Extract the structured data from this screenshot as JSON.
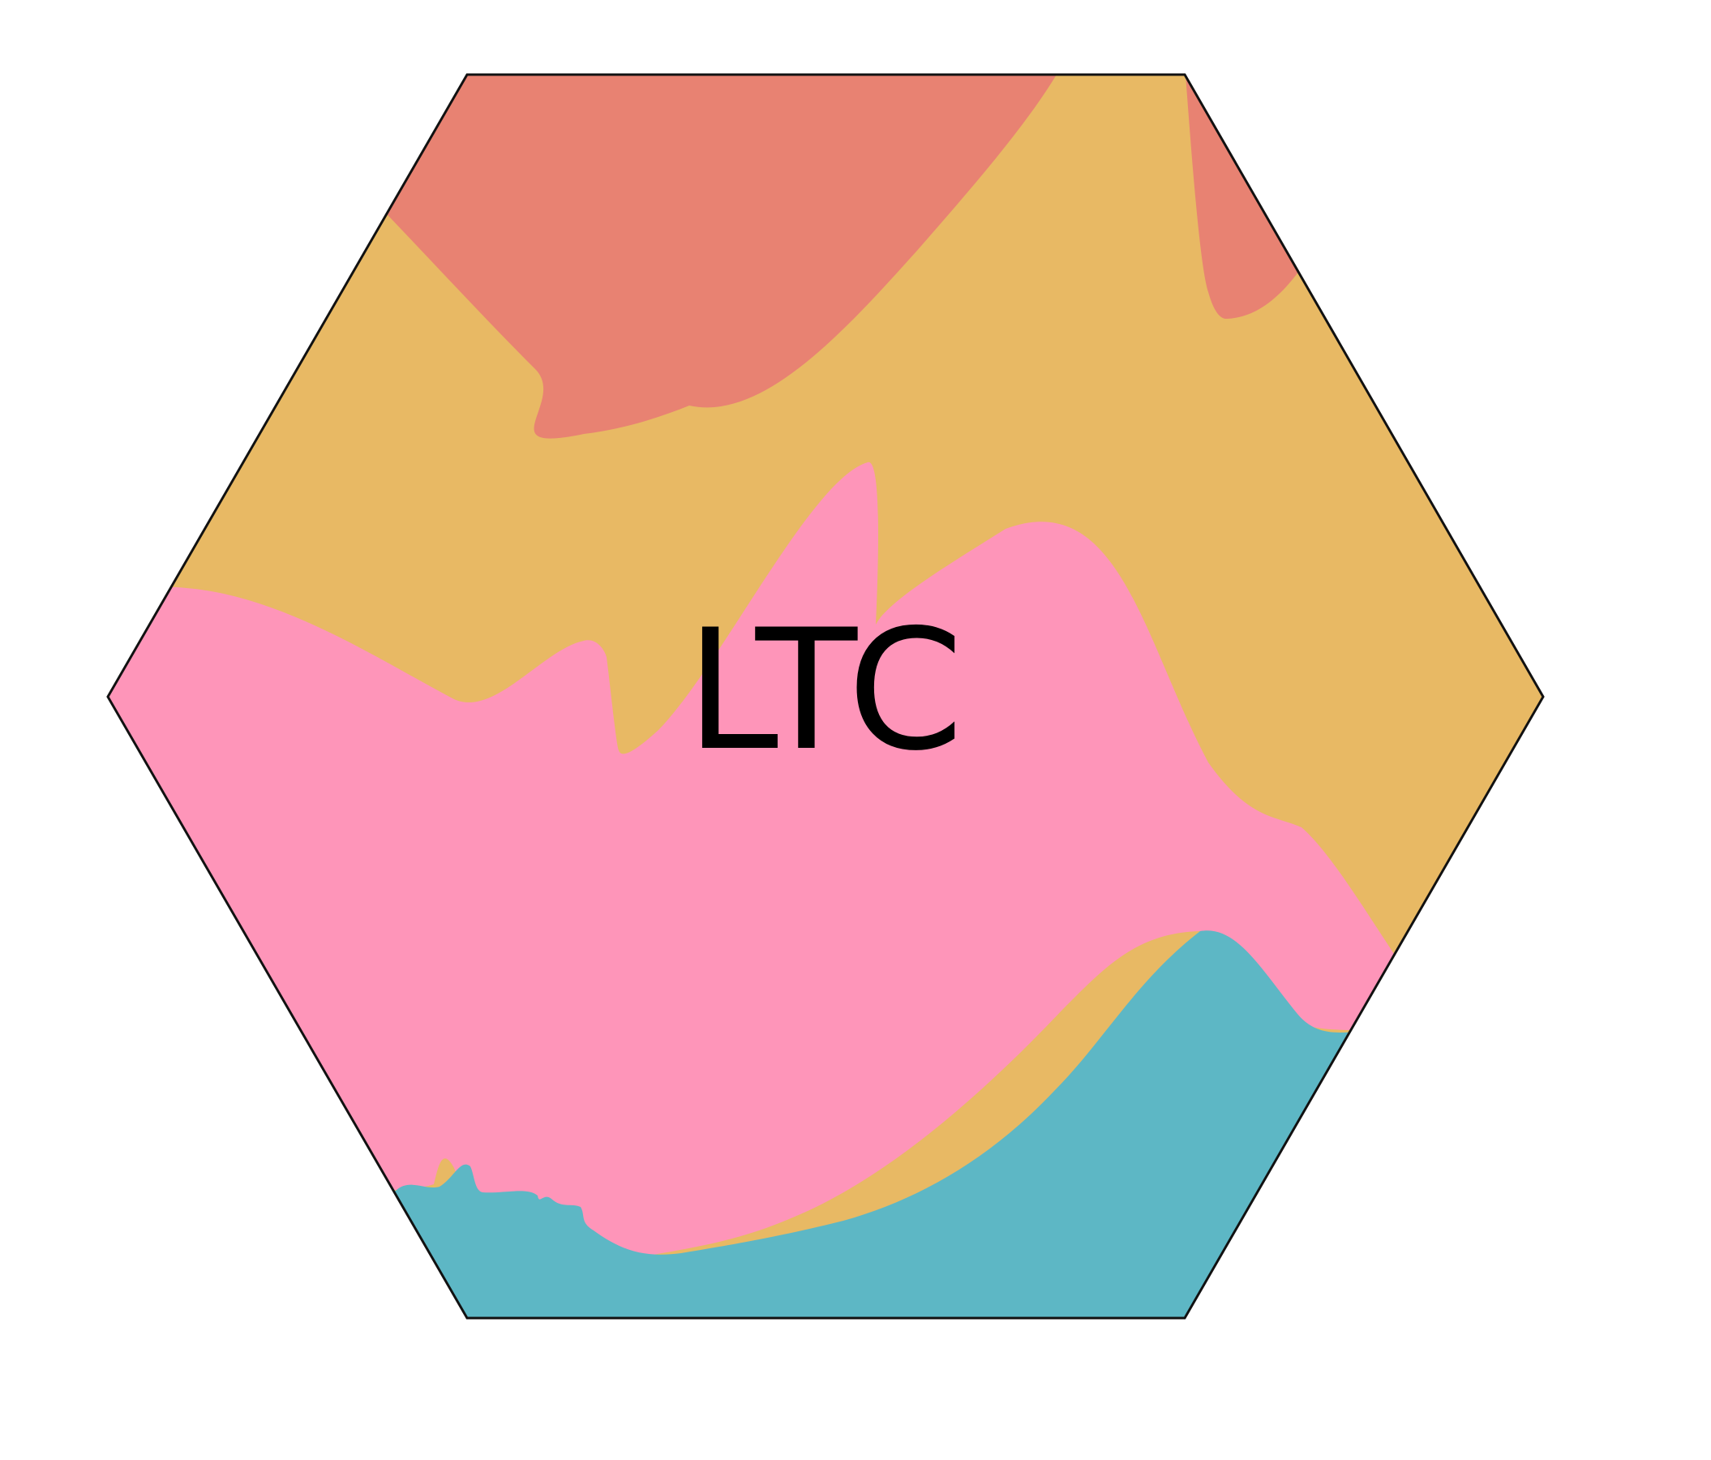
{
  "logo": {
    "text": "LTC",
    "outline_color": "#111111",
    "text_color": "#000000",
    "colors": {
      "background": "#ffffff",
      "coral": "#e88272",
      "mustard": "#e8b964",
      "pink": "#fe95b9",
      "teal": "#5db7c5"
    }
  }
}
